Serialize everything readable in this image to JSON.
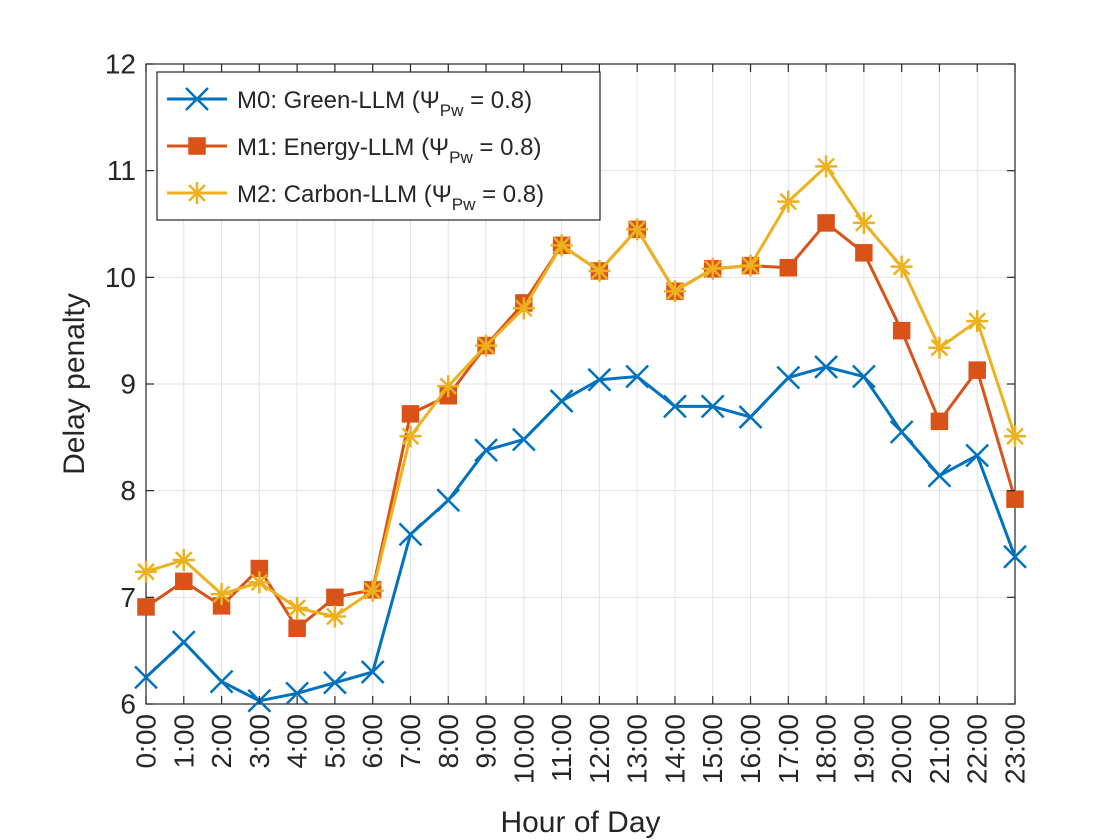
{
  "chart_data": {
    "type": "line",
    "title": "",
    "xlabel": "Hour of Day",
    "ylabel": "Delay penalty",
    "ylim": [
      6,
      12
    ],
    "yticks": [
      6,
      7,
      8,
      9,
      10,
      11,
      12
    ],
    "grid": true,
    "legend_position": "top-left",
    "categories": [
      "0:00",
      "1:00",
      "2:00",
      "3:00",
      "4:00",
      "5:00",
      "6:00",
      "7:00",
      "8:00",
      "9:00",
      "10:00",
      "11:00",
      "12:00",
      "13:00",
      "14:00",
      "15:00",
      "16:00",
      "17:00",
      "18:00",
      "19:00",
      "20:00",
      "21:00",
      "22:00",
      "23:00"
    ],
    "series": [
      {
        "name": "M0: Green-LLM (ΨPw = 0.8)",
        "legend_main": "M0: Green-LLM (Ψ",
        "legend_sub": "Pw",
        "legend_tail": " = 0.8)",
        "color": "#0072BD",
        "marker": "x",
        "values": [
          6.25,
          6.58,
          6.21,
          6.03,
          6.1,
          6.2,
          6.3,
          7.59,
          7.91,
          8.38,
          8.48,
          8.84,
          9.04,
          9.07,
          8.79,
          8.79,
          8.69,
          9.06,
          9.16,
          9.07,
          8.55,
          8.14,
          8.33,
          7.38
        ]
      },
      {
        "name": "M1: Energy-LLM (ΨPw = 0.8)",
        "legend_main": "M1: Energy-LLM (Ψ",
        "legend_sub": "Pw",
        "legend_tail": " = 0.8)",
        "color": "#D95319",
        "marker": "square",
        "values": [
          6.91,
          7.15,
          6.92,
          7.27,
          6.71,
          7.0,
          7.07,
          8.72,
          8.89,
          9.36,
          9.76,
          10.3,
          10.06,
          10.45,
          9.87,
          10.08,
          10.11,
          10.09,
          10.51,
          10.23,
          9.5,
          8.65,
          9.13,
          7.92
        ]
      },
      {
        "name": "M2: Carbon-LLM (ΨPw = 0.8)",
        "legend_main": "M2: Carbon-LLM (Ψ",
        "legend_sub": "Pw",
        "legend_tail": " = 0.8)",
        "color": "#EDB120",
        "marker": "asterisk",
        "values": [
          7.24,
          7.35,
          7.03,
          7.14,
          6.9,
          6.82,
          7.06,
          8.51,
          8.98,
          9.36,
          9.71,
          10.3,
          10.06,
          10.45,
          9.87,
          10.08,
          10.11,
          10.71,
          11.04,
          10.51,
          10.1,
          9.34,
          9.59,
          8.51
        ]
      }
    ]
  }
}
